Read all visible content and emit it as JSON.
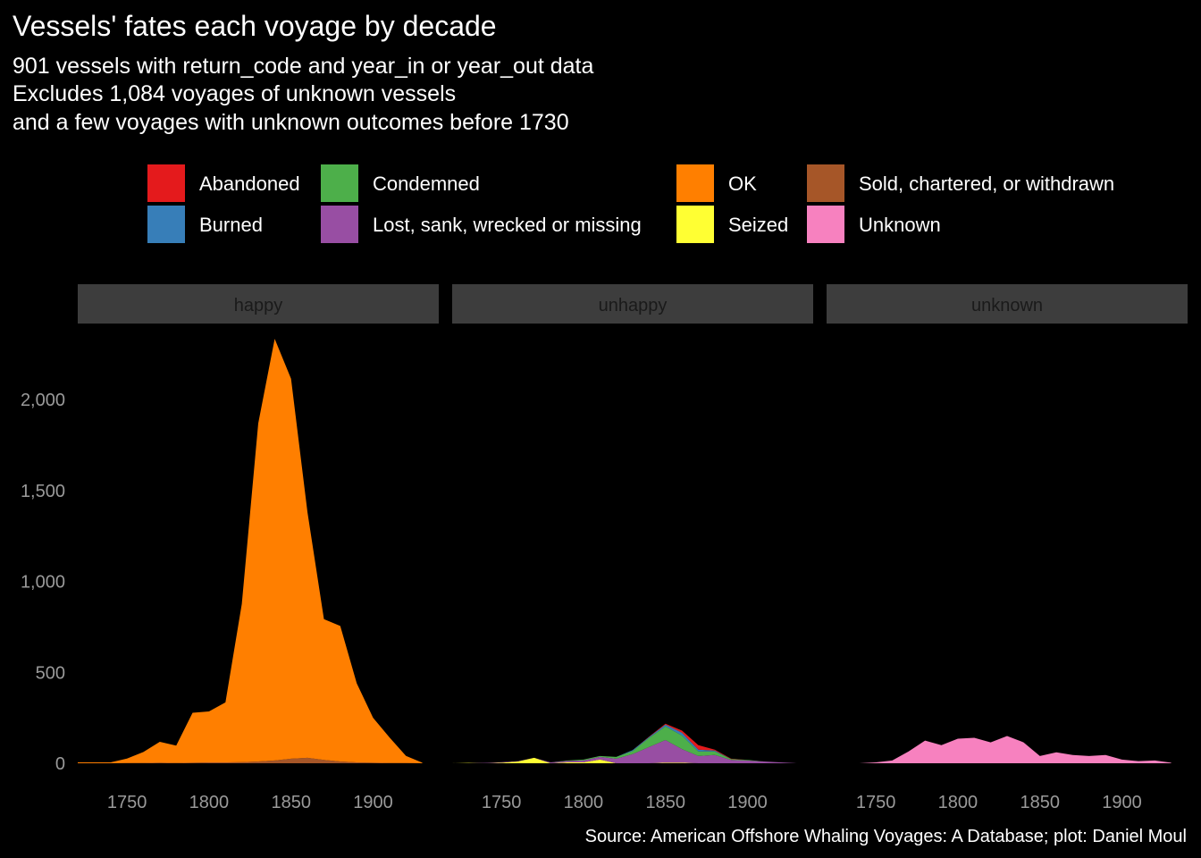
{
  "chart_data": {
    "type": "area",
    "stacked": true,
    "title": "Vessels' fates each voyage by decade",
    "subtitle": [
      "901 vessels with return_code and year_in or year_out data",
      "Excludes 1,084 voyages of unknown vessels",
      "and a few voyages with unknown outcomes before 1730"
    ],
    "caption": "Source: American Offshore Whaling Voyages: A Database; plot: Daniel Moul",
    "xlabel": "",
    "ylabel": "",
    "xlim": [
      1720,
      1940
    ],
    "ylim": [
      0,
      2350
    ],
    "x_ticks": [
      1750,
      1800,
      1850,
      1900
    ],
    "x_tick_labels": [
      "1750",
      "1800",
      "1850",
      "1900"
    ],
    "y_ticks": [
      0,
      500,
      1000,
      1500,
      2000
    ],
    "y_tick_labels": [
      "0",
      "500",
      "1,000",
      "1,500",
      "2,000"
    ],
    "grid": false,
    "legend_position": "top",
    "legend": [
      {
        "key": "abandoned",
        "label": "Abandoned",
        "color": "#E41A1C"
      },
      {
        "key": "burned",
        "label": "Burned",
        "color": "#377EB8"
      },
      {
        "key": "condemned",
        "label": "Condemned",
        "color": "#4DAF4A"
      },
      {
        "key": "lost",
        "label": "Lost, sank, wrecked or missing",
        "color": "#984EA3"
      },
      {
        "key": "ok",
        "label": "OK",
        "color": "#FF7F00"
      },
      {
        "key": "seized",
        "label": "Seized",
        "color": "#FFFF33"
      },
      {
        "key": "sold",
        "label": "Sold, chartered, or withdrawn",
        "color": "#A65628"
      },
      {
        "key": "unknown",
        "label": "Unknown",
        "color": "#F781BF"
      }
    ],
    "x": [
      1720,
      1730,
      1740,
      1750,
      1760,
      1770,
      1780,
      1790,
      1800,
      1810,
      1820,
      1830,
      1840,
      1850,
      1860,
      1870,
      1880,
      1890,
      1900,
      1910,
      1920,
      1930
    ],
    "panels": [
      {
        "label": "happy",
        "series": [
          {
            "key": "sold",
            "values": [
              0,
              0,
              0,
              1,
              2,
              3,
              2,
              3,
              5,
              5,
              6,
              10,
              15,
              25,
              30,
              18,
              10,
              5,
              3,
              2,
              1,
              0
            ]
          },
          {
            "key": "ok",
            "values": [
              5,
              5,
              5,
              25,
              60,
              115,
              95,
              275,
              280,
              330,
              870,
              1860,
              2320,
              2090,
              1350,
              775,
              745,
              435,
              247,
              140,
              40,
              3
            ]
          }
        ]
      },
      {
        "label": "unhappy",
        "series": [
          {
            "key": "seized",
            "values": [
              0,
              2,
              0,
              3,
              10,
              30,
              0,
              5,
              5,
              20,
              0,
              0,
              0,
              3,
              3,
              0,
              0,
              0,
              0,
              0,
              0,
              0
            ]
          },
          {
            "key": "lost",
            "values": [
              0,
              0,
              2,
              3,
              2,
              0,
              5,
              8,
              10,
              15,
              25,
              50,
              90,
              125,
              75,
              40,
              45,
              18,
              15,
              10,
              5,
              0
            ]
          },
          {
            "key": "condemned",
            "values": [
              0,
              0,
              0,
              0,
              0,
              0,
              0,
              2,
              5,
              5,
              10,
              18,
              50,
              75,
              75,
              25,
              20,
              5,
              3,
              0,
              0,
              0
            ]
          },
          {
            "key": "burned",
            "values": [
              0,
              0,
              0,
              0,
              0,
              0,
              0,
              0,
              0,
              0,
              0,
              5,
              5,
              10,
              15,
              10,
              5,
              0,
              0,
              0,
              0,
              0
            ]
          },
          {
            "key": "abandoned",
            "values": [
              0,
              0,
              0,
              0,
              0,
              0,
              0,
              0,
              0,
              0,
              0,
              0,
              2,
              5,
              12,
              25,
              5,
              2,
              0,
              0,
              0,
              0
            ]
          }
        ]
      },
      {
        "label": "unknown",
        "series": [
          {
            "key": "unknown",
            "values": [
              0,
              0,
              0,
              5,
              15,
              65,
              125,
              100,
              135,
              140,
              115,
              150,
              115,
              40,
              60,
              45,
              40,
              45,
              20,
              12,
              15,
              3
            ]
          }
        ]
      }
    ]
  }
}
